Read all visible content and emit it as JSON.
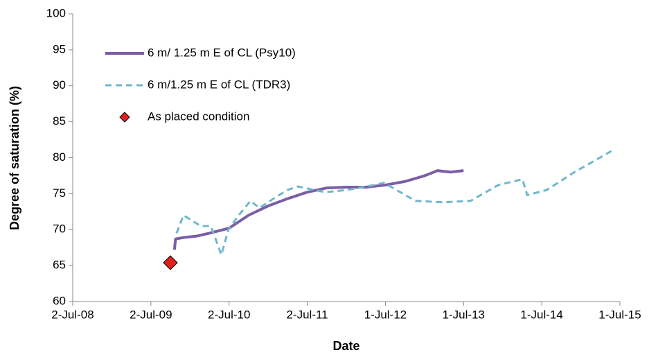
{
  "chart_data": {
    "type": "line",
    "x_label": "Date",
    "y_label": "Degree of saturation (%)",
    "xlim": [
      "2008-07-02",
      "2015-07-01"
    ],
    "xticks": [
      {
        "value": "2008-07-02",
        "label": "2-Jul-08"
      },
      {
        "value": "2009-07-02",
        "label": "2-Jul-09"
      },
      {
        "value": "2010-07-02",
        "label": "2-Jul-10"
      },
      {
        "value": "2011-07-02",
        "label": "2-Jul-11"
      },
      {
        "value": "2012-07-01",
        "label": "1-Jul-12"
      },
      {
        "value": "2013-07-01",
        "label": "1-Jul-13"
      },
      {
        "value": "2014-07-01",
        "label": "1-Jul-14"
      },
      {
        "value": "2015-07-01",
        "label": "1-Jul-15"
      }
    ],
    "ylim": [
      60,
      100
    ],
    "yticks": [
      60,
      65,
      70,
      75,
      80,
      85,
      90,
      95,
      100
    ],
    "series": [
      {
        "name": "6 m/ 1.25 m E of CL (Psy10)",
        "color": "#7b5ea7",
        "style": "solid",
        "x": [
          "2009-10-20",
          "2009-10-25",
          "2009-12-01",
          "2010-02-01",
          "2010-04-01",
          "2010-07-02",
          "2010-10-01",
          "2011-01-01",
          "2011-04-01",
          "2011-07-01",
          "2011-10-01",
          "2012-01-01",
          "2012-04-01",
          "2012-07-01",
          "2012-10-01",
          "2013-01-01",
          "2013-03-01",
          "2013-05-01",
          "2013-07-01"
        ],
        "values": [
          67.2,
          68.7,
          68.9,
          69.1,
          69.5,
          70.2,
          72.0,
          73.3,
          74.3,
          75.2,
          75.8,
          75.9,
          75.9,
          76.2,
          76.7,
          77.5,
          78.2,
          78.0,
          78.2
        ]
      },
      {
        "name": "6 m/1.25 m E of CL (TDR3)",
        "color": "#6fb7cc",
        "style": "dashed",
        "x": [
          "2009-10-30",
          "2009-12-01",
          "2010-02-20",
          "2010-04-08",
          "2010-05-27",
          "2010-06-29",
          "2010-08-16",
          "2010-10-10",
          "2010-11-21",
          "2011-01-25",
          "2011-03-31",
          "2011-05-18",
          "2011-09-24",
          "2011-12-30",
          "2012-04-05",
          "2012-06-25",
          "2012-11-18",
          "2013-03-27",
          "2013-08-03",
          "2013-12-10",
          "2014-04-02",
          "2014-04-24",
          "2014-07-24",
          "2014-12-01",
          "2015-05-27"
        ],
        "values": [
          69.5,
          72.0,
          70.5,
          70.5,
          66.5,
          70.0,
          72.0,
          74.0,
          73.0,
          74.3,
          75.5,
          76.0,
          75.2,
          75.5,
          76.0,
          76.5,
          74.0,
          73.8,
          74.0,
          76.2,
          77.0,
          74.8,
          75.5,
          78.0,
          81.0
        ]
      },
      {
        "name": "As placed condition",
        "color": "#e0201b",
        "style": "marker",
        "x": [
          "2009-10-01"
        ],
        "values": [
          65.4
        ]
      }
    ]
  }
}
